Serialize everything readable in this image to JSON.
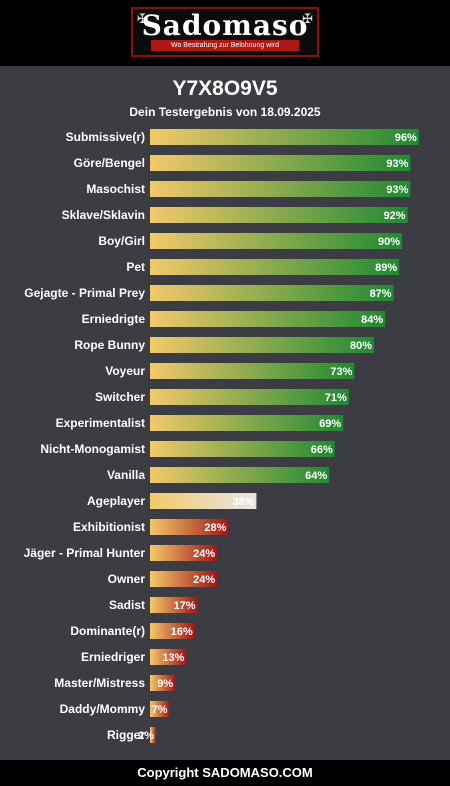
{
  "header": {
    "logo_text": "Sadomaso",
    "logo_tagline": "Wo Bestrafung zur Belohnung wird"
  },
  "main": {
    "title": "Y7X8O9V5",
    "subtitle": "Dein Testergebnis von 18.09.2025"
  },
  "colors": {
    "bar_start": "#f3c96a",
    "high_end": "#1f8a32",
    "mid_end": "#e6e6e6",
    "low_end": "#a11616"
  },
  "chart_data": {
    "type": "bar",
    "orientation": "horizontal",
    "xlim": [
      0,
      100
    ],
    "categories": [
      "Submissive(r)",
      "Göre/Bengel",
      "Masochist",
      "Sklave/Sklavin",
      "Boy/Girl",
      "Pet",
      "Gejagte - Primal Prey",
      "Erniedrigte",
      "Rope Bunny",
      "Voyeur",
      "Switcher",
      "Experimentalist",
      "Nicht-Monogamist",
      "Vanilla",
      "Ageplayer",
      "Exhibitionist",
      "Jäger - Primal Hunter",
      "Owner",
      "Sadist",
      "Dominante(r)",
      "Erniedriger",
      "Master/Mistress",
      "Daddy/Mommy",
      "Rigger"
    ],
    "values": [
      96,
      93,
      93,
      92,
      90,
      89,
      87,
      84,
      80,
      73,
      71,
      69,
      66,
      64,
      38,
      28,
      24,
      24,
      17,
      16,
      13,
      9,
      7,
      2
    ],
    "value_labels": [
      "96%",
      "93%",
      "93%",
      "92%",
      "90%",
      "89%",
      "87%",
      "84%",
      "80%",
      "73%",
      "71%",
      "69%",
      "66%",
      "64%",
      "38%",
      "28%",
      "24%",
      "24%",
      "17%",
      "16%",
      "13%",
      "9%",
      "7%",
      "2%"
    ]
  },
  "footer": {
    "copyright": "Copyright SADOMASO.COM"
  }
}
